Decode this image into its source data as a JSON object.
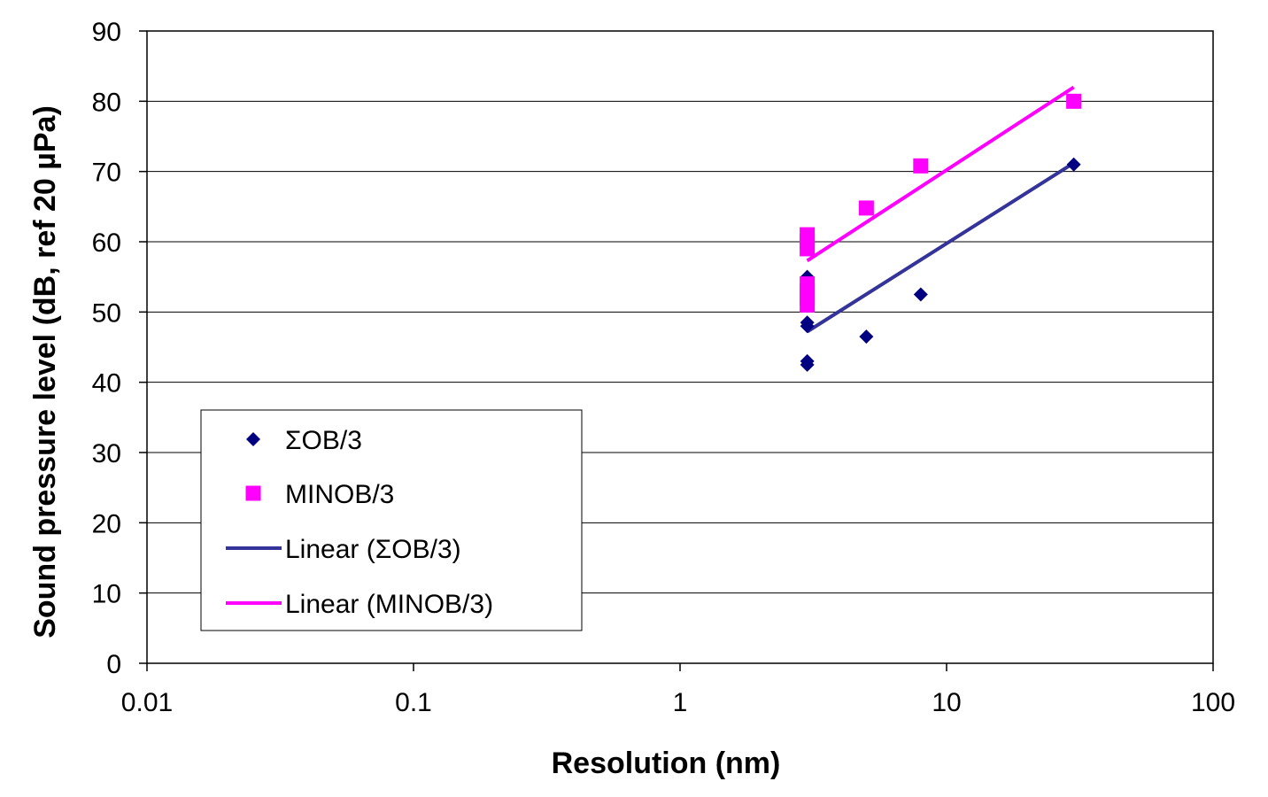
{
  "chart_data": {
    "type": "scatter",
    "xlabel": "Resolution (nm)",
    "ylabel": "Sound pressure level (dB, ref 20 µPa)",
    "xscale": "log",
    "xlim": [
      0.01,
      100
    ],
    "ylim": [
      0,
      90
    ],
    "xticks": [
      0.01,
      0.1,
      1,
      10,
      100
    ],
    "xtick_labels": [
      "0.01",
      "0.1",
      "1",
      "10",
      "100"
    ],
    "yticks": [
      0,
      10,
      20,
      30,
      40,
      50,
      60,
      70,
      80,
      90
    ],
    "ytick_labels": [
      "0",
      "10",
      "20",
      "30",
      "40",
      "50",
      "60",
      "70",
      "80",
      "90"
    ],
    "grid": "horizontal",
    "legend_position": "lower-left",
    "series": [
      {
        "name": "ΣOB/3",
        "kind": "scatter",
        "marker": "diamond",
        "color": "#000080",
        "points": [
          [
            3,
            43
          ],
          [
            3,
            42.5
          ],
          [
            3,
            48
          ],
          [
            3,
            48.5
          ],
          [
            3,
            55
          ],
          [
            5,
            46.5
          ],
          [
            8,
            52.5
          ],
          [
            30,
            71
          ]
        ]
      },
      {
        "name": "MINOB/3",
        "kind": "scatter",
        "marker": "square",
        "color": "#ff00ff",
        "points": [
          [
            3,
            51
          ],
          [
            3,
            52
          ],
          [
            3,
            53
          ],
          [
            3,
            54
          ],
          [
            3,
            59
          ],
          [
            3,
            60
          ],
          [
            3,
            61
          ],
          [
            5,
            64.8
          ],
          [
            8,
            70.8
          ],
          [
            30,
            80
          ]
        ]
      },
      {
        "name": "Linear (ΣOB/3)",
        "kind": "line",
        "color": "#333399",
        "points": [
          [
            3,
            47.2
          ],
          [
            30,
            71.2
          ]
        ]
      },
      {
        "name": "Linear (MINOB/3)",
        "kind": "line",
        "color": "#ff00ff",
        "points": [
          [
            3,
            57.3
          ],
          [
            30,
            82
          ]
        ]
      }
    ]
  }
}
